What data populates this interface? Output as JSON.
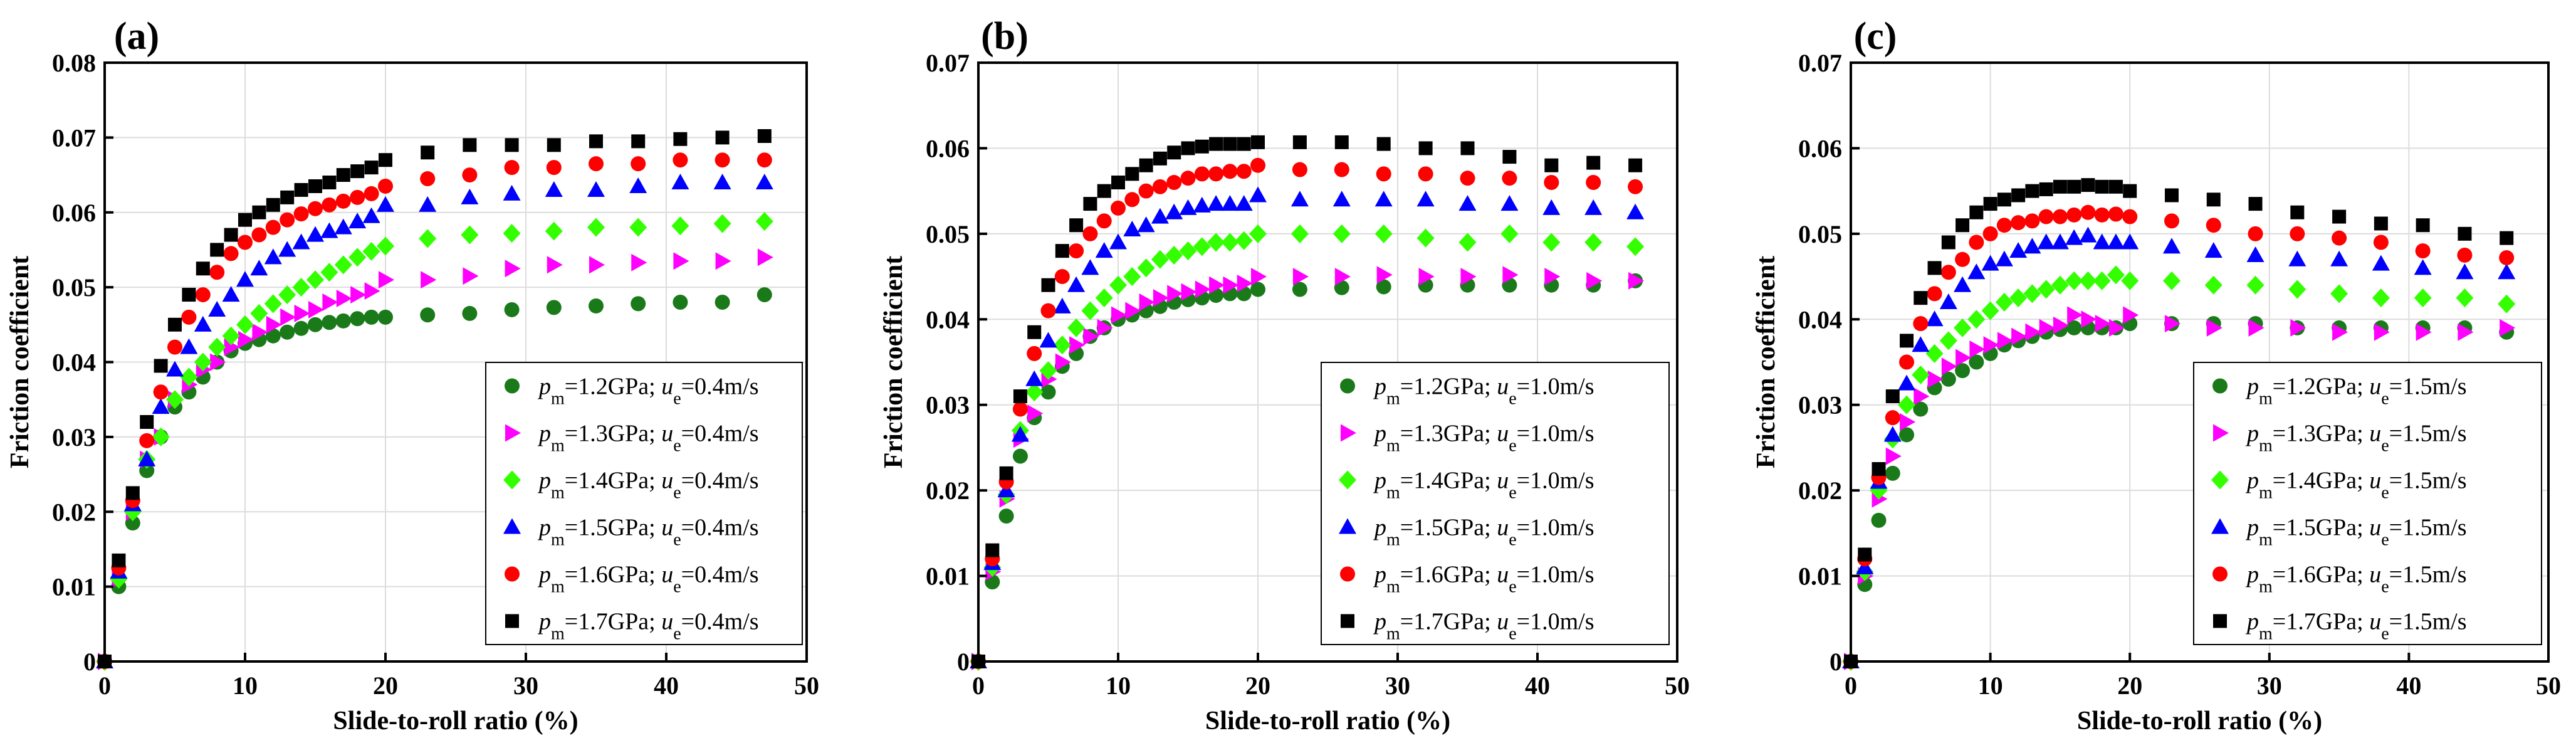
{
  "chart_data": [
    {
      "type": "scatter",
      "panel_label": "(a)",
      "xlabel": "Slide-to-roll ratio (%)",
      "ylabel": "Friction coefficient",
      "xlim": [
        0,
        50
      ],
      "ylim": [
        0,
        0.08
      ],
      "xticks": [
        0,
        10,
        20,
        30,
        40,
        50
      ],
      "yticks": [
        0,
        0.01,
        0.02,
        0.03,
        0.04,
        0.05,
        0.06,
        0.07,
        0.08
      ],
      "ytick_labels": [
        "0",
        "0.01",
        "0.02",
        "0.03",
        "0.04",
        "0.05",
        "0.06",
        "0.07",
        "0.08"
      ],
      "grid": true,
      "legend_position": "bottom-right",
      "series": [
        {
          "pm": "1.2GPa",
          "ue": "0.4m/s",
          "marker": "circle",
          "color": "#1a7a1a",
          "y": [
            0,
            0.01,
            0.0185,
            0.0255,
            0.03,
            0.034,
            0.036,
            0.038,
            0.04,
            0.0415,
            0.0425,
            0.043,
            0.0435,
            0.044,
            0.0445,
            0.045,
            0.0453,
            0.0455,
            0.0458,
            0.046,
            0.046,
            0.0463,
            0.0465,
            0.047,
            0.0473,
            0.0475,
            0.0478,
            0.048,
            0.048,
            0.049
          ]
        },
        {
          "pm": "1.3GPa",
          "ue": "0.4m/s",
          "marker": "triangle-right",
          "color": "#ff00ff",
          "y": [
            0,
            0.011,
            0.02,
            0.027,
            0.03,
            0.035,
            0.037,
            0.039,
            0.04,
            0.042,
            0.043,
            0.044,
            0.045,
            0.046,
            0.0465,
            0.047,
            0.048,
            0.0485,
            0.049,
            0.0495,
            0.051,
            0.051,
            0.0515,
            0.0525,
            0.053,
            0.053,
            0.0533,
            0.0535,
            0.0535,
            0.054
          ]
        },
        {
          "pm": "1.4GPa",
          "ue": "0.4m/s",
          "marker": "diamond",
          "color": "#33ff00",
          "y": [
            0,
            0.011,
            0.02,
            0.027,
            0.03,
            0.035,
            0.038,
            0.04,
            0.042,
            0.0435,
            0.045,
            0.0465,
            0.0478,
            0.049,
            0.05,
            0.051,
            0.052,
            0.053,
            0.054,
            0.0548,
            0.0555,
            0.0565,
            0.057,
            0.0572,
            0.0575,
            0.058,
            0.058,
            0.0582,
            0.0585,
            0.0588
          ]
        },
        {
          "pm": "1.5GPa",
          "ue": "0.4m/s",
          "marker": "triangle-up",
          "color": "#0000ff",
          "y": [
            0,
            0.012,
            0.021,
            0.027,
            0.034,
            0.039,
            0.042,
            0.045,
            0.047,
            0.049,
            0.051,
            0.0525,
            0.054,
            0.055,
            0.056,
            0.057,
            0.0575,
            0.058,
            0.0588,
            0.0595,
            0.061,
            0.061,
            0.062,
            0.0625,
            0.063,
            0.063,
            0.0635,
            0.064,
            0.064,
            0.064
          ]
        },
        {
          "pm": "1.6GPa",
          "ue": "0.4m/s",
          "marker": "circle",
          "color": "#ff0000",
          "y": [
            0,
            0.0125,
            0.0215,
            0.0295,
            0.036,
            0.042,
            0.046,
            0.049,
            0.052,
            0.0545,
            0.056,
            0.057,
            0.058,
            0.059,
            0.0598,
            0.0605,
            0.061,
            0.0615,
            0.062,
            0.0625,
            0.0635,
            0.0645,
            0.065,
            0.066,
            0.066,
            0.0665,
            0.0665,
            0.067,
            0.067,
            0.067
          ]
        },
        {
          "pm": "1.7GPa",
          "ue": "0.4m/s",
          "marker": "square",
          "color": "#000000",
          "y": [
            0,
            0.0135,
            0.0225,
            0.032,
            0.0395,
            0.045,
            0.049,
            0.0525,
            0.055,
            0.057,
            0.059,
            0.06,
            0.061,
            0.062,
            0.063,
            0.0635,
            0.064,
            0.065,
            0.0655,
            0.066,
            0.067,
            0.068,
            0.069,
            0.069,
            0.069,
            0.0695,
            0.0695,
            0.0698,
            0.07,
            0.0702
          ]
        }
      ]
    },
    {
      "type": "scatter",
      "panel_label": "(b)",
      "xlabel": "Slide-to-roll ratio (%)",
      "ylabel": "Friction coefficient",
      "xlim": [
        0,
        50
      ],
      "ylim": [
        0,
        0.07
      ],
      "xticks": [
        0,
        10,
        20,
        30,
        40,
        50
      ],
      "yticks": [
        0,
        0.01,
        0.02,
        0.03,
        0.04,
        0.05,
        0.06,
        0.07
      ],
      "ytick_labels": [
        "0",
        "0.01",
        "0.02",
        "0.03",
        "0.04",
        "0.05",
        "0.06",
        "0.07"
      ],
      "grid": true,
      "legend_position": "bottom-right",
      "series": [
        {
          "pm": "1.2GPa",
          "ue": "1.0m/s",
          "marker": "circle",
          "color": "#1a7a1a",
          "y": [
            0,
            0.0093,
            0.017,
            0.024,
            0.0285,
            0.0315,
            0.0345,
            0.036,
            0.038,
            0.039,
            0.04,
            0.0405,
            0.041,
            0.0415,
            0.042,
            0.0423,
            0.0425,
            0.0428,
            0.043,
            0.043,
            0.0435,
            0.0435,
            0.0437,
            0.0438,
            0.044,
            0.044,
            0.044,
            0.044,
            0.044,
            0.0445
          ]
        },
        {
          "pm": "1.3GPa",
          "ue": "1.0m/s",
          "marker": "triangle-right",
          "color": "#ff00ff",
          "y": [
            0,
            0.0105,
            0.019,
            0.026,
            0.029,
            0.033,
            0.035,
            0.037,
            0.038,
            0.039,
            0.0405,
            0.041,
            0.042,
            0.0425,
            0.043,
            0.0432,
            0.0435,
            0.044,
            0.044,
            0.0442,
            0.045,
            0.045,
            0.045,
            0.0452,
            0.045,
            0.045,
            0.0452,
            0.045,
            0.0445,
            0.0445
          ]
        },
        {
          "pm": "1.4GPa",
          "ue": "1.0m/s",
          "marker": "diamond",
          "color": "#33ff00",
          "y": [
            0,
            0.011,
            0.0195,
            0.027,
            0.0315,
            0.034,
            0.037,
            0.039,
            0.041,
            0.0425,
            0.044,
            0.045,
            0.046,
            0.047,
            0.0475,
            0.048,
            0.0485,
            0.049,
            0.049,
            0.0492,
            0.05,
            0.05,
            0.05,
            0.05,
            0.0495,
            0.049,
            0.05,
            0.049,
            0.049,
            0.0485
          ]
        },
        {
          "pm": "1.5GPa",
          "ue": "1.0m/s",
          "marker": "triangle-up",
          "color": "#0000ff",
          "y": [
            0,
            0.0115,
            0.02,
            0.0265,
            0.033,
            0.0375,
            0.0415,
            0.044,
            0.046,
            0.048,
            0.049,
            0.0505,
            0.051,
            0.052,
            0.0525,
            0.053,
            0.0533,
            0.0535,
            0.0535,
            0.0535,
            0.0545,
            0.054,
            0.054,
            0.054,
            0.054,
            0.0535,
            0.0535,
            0.053,
            0.053,
            0.0525
          ]
        },
        {
          "pm": "1.6GPa",
          "ue": "1.0m/s",
          "marker": "circle",
          "color": "#ff0000",
          "y": [
            0,
            0.012,
            0.021,
            0.0295,
            0.036,
            0.041,
            0.045,
            0.048,
            0.05,
            0.0515,
            0.053,
            0.054,
            0.055,
            0.0555,
            0.056,
            0.0565,
            0.057,
            0.057,
            0.0573,
            0.0573,
            0.058,
            0.0575,
            0.0575,
            0.057,
            0.057,
            0.0565,
            0.0565,
            0.056,
            0.056,
            0.0555
          ]
        },
        {
          "pm": "1.7GPa",
          "ue": "1.0m/s",
          "marker": "square",
          "color": "#000000",
          "y": [
            0,
            0.013,
            0.022,
            0.031,
            0.0385,
            0.044,
            0.048,
            0.051,
            0.0535,
            0.055,
            0.056,
            0.057,
            0.058,
            0.0588,
            0.0595,
            0.06,
            0.0602,
            0.0605,
            0.0605,
            0.0605,
            0.0607,
            0.0607,
            0.0607,
            0.0605,
            0.06,
            0.06,
            0.059,
            0.058,
            0.0583,
            0.058
          ]
        }
      ]
    },
    {
      "type": "scatter",
      "panel_label": "(c)",
      "xlabel": "Slide-to-roll ratio (%)",
      "ylabel": "Friction coefficient",
      "xlim": [
        0,
        50
      ],
      "ylim": [
        0,
        0.07
      ],
      "xticks": [
        0,
        10,
        20,
        30,
        40,
        50
      ],
      "yticks": [
        0,
        0.01,
        0.02,
        0.03,
        0.04,
        0.05,
        0.06,
        0.07
      ],
      "ytick_labels": [
        "0",
        "0.01",
        "0.02",
        "0.03",
        "0.04",
        "0.05",
        "0.06",
        "0.07"
      ],
      "grid": true,
      "legend_position": "bottom-right",
      "series": [
        {
          "pm": "1.2GPa",
          "ue": "1.5m/s",
          "marker": "circle",
          "color": "#1a7a1a",
          "y": [
            0,
            0.009,
            0.0165,
            0.022,
            0.0265,
            0.0295,
            0.032,
            0.033,
            0.034,
            0.035,
            0.036,
            0.037,
            0.0375,
            0.038,
            0.0385,
            0.0388,
            0.039,
            0.039,
            0.039,
            0.039,
            0.0395,
            0.0395,
            0.0395,
            0.0395,
            0.039,
            0.039,
            0.039,
            0.039,
            0.039,
            0.0385
          ]
        },
        {
          "pm": "1.3GPa",
          "ue": "1.5m/s",
          "marker": "triangle-right",
          "color": "#ff00ff",
          "y": [
            0,
            0.01,
            0.019,
            0.024,
            0.028,
            0.031,
            0.033,
            0.0345,
            0.0355,
            0.0365,
            0.037,
            0.0375,
            0.038,
            0.0385,
            0.039,
            0.0393,
            0.0405,
            0.04,
            0.0395,
            0.039,
            0.0405,
            0.0395,
            0.039,
            0.039,
            0.039,
            0.0385,
            0.0385,
            0.0385,
            0.0385,
            0.039
          ]
        },
        {
          "pm": "1.4GPa",
          "ue": "1.5m/s",
          "marker": "diamond",
          "color": "#33ff00",
          "y": [
            0,
            0.0105,
            0.02,
            0.026,
            0.03,
            0.0335,
            0.036,
            0.0375,
            0.039,
            0.04,
            0.041,
            0.042,
            0.0425,
            0.043,
            0.0435,
            0.044,
            0.0445,
            0.0445,
            0.0445,
            0.0452,
            0.0445,
            0.0445,
            0.044,
            0.044,
            0.0435,
            0.043,
            0.0425,
            0.0425,
            0.0425,
            0.0418
          ]
        },
        {
          "pm": "1.5GPa",
          "ue": "1.5m/s",
          "marker": "triangle-up",
          "color": "#0000ff",
          "y": [
            0,
            0.011,
            0.021,
            0.0265,
            0.0325,
            0.037,
            0.04,
            0.042,
            0.044,
            0.0455,
            0.0465,
            0.047,
            0.048,
            0.0485,
            0.049,
            0.049,
            0.0495,
            0.0498,
            0.049,
            0.049,
            0.049,
            0.0485,
            0.048,
            0.0475,
            0.047,
            0.047,
            0.0465,
            0.046,
            0.0455,
            0.0455
          ]
        },
        {
          "pm": "1.6GPa",
          "ue": "1.5m/s",
          "marker": "circle",
          "color": "#ff0000",
          "y": [
            0,
            0.012,
            0.0215,
            0.0285,
            0.035,
            0.0395,
            0.043,
            0.0455,
            0.047,
            0.049,
            0.05,
            0.051,
            0.0513,
            0.0515,
            0.052,
            0.052,
            0.0522,
            0.0525,
            0.0522,
            0.0523,
            0.052,
            0.0515,
            0.051,
            0.05,
            0.05,
            0.0495,
            0.049,
            0.048,
            0.0475,
            0.0472
          ]
        },
        {
          "pm": "1.7GPa",
          "ue": "1.5m/s",
          "marker": "square",
          "color": "#000000",
          "y": [
            0,
            0.0125,
            0.0225,
            0.031,
            0.0375,
            0.0425,
            0.046,
            0.049,
            0.051,
            0.0525,
            0.0535,
            0.054,
            0.0545,
            0.055,
            0.0552,
            0.0555,
            0.0555,
            0.0557,
            0.0555,
            0.0555,
            0.055,
            0.0545,
            0.054,
            0.0535,
            0.0525,
            0.052,
            0.0512,
            0.051,
            0.05,
            0.0495
          ]
        }
      ]
    }
  ],
  "x_values": [
    0,
    1,
    2,
    3,
    4,
    5,
    6,
    7,
    8,
    9,
    10,
    11,
    12,
    13,
    14,
    15,
    16,
    17,
    18,
    19,
    20,
    23,
    26,
    29,
    32,
    35,
    38,
    41,
    44,
    47
  ]
}
